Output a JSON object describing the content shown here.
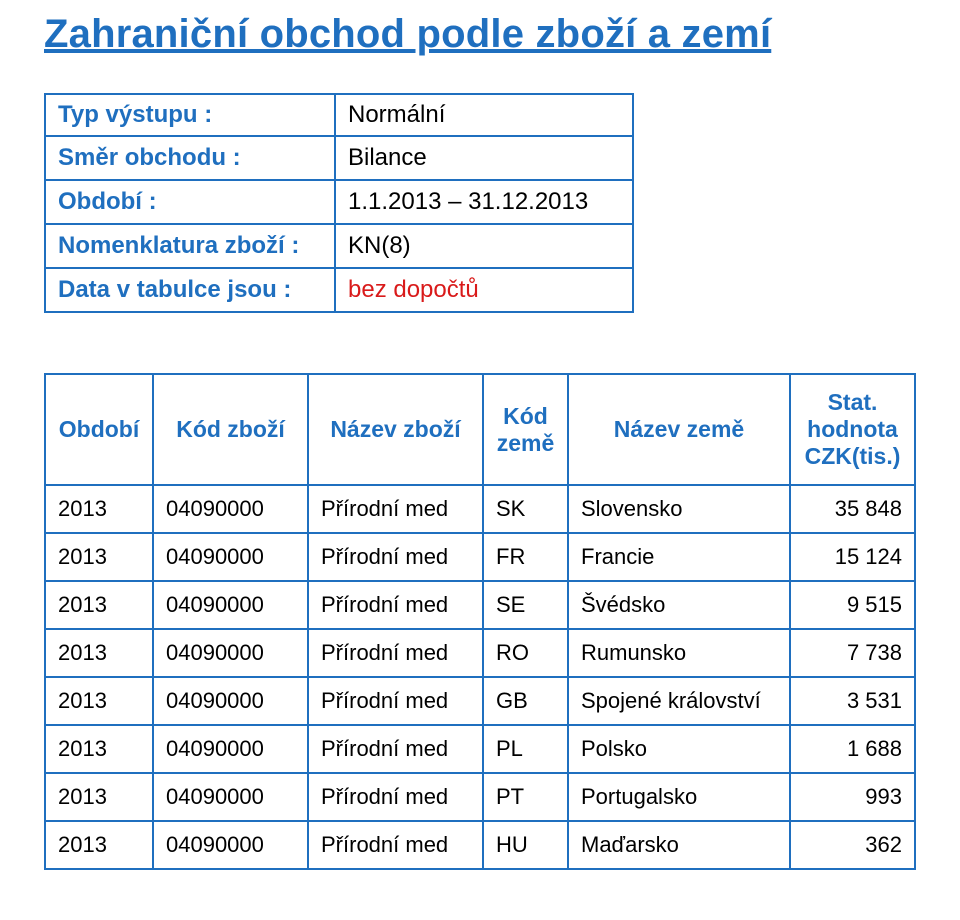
{
  "title": "Zahraniční obchod podle zboží a zemí",
  "title_color": "#1f6fbf",
  "border_color": "#1f6fbf",
  "value_red_color": "#d91a1a",
  "meta": [
    {
      "label": "Typ výstupu :",
      "value": "Normální",
      "style": "black"
    },
    {
      "label": "Směr obchodu :",
      "value": "Bilance",
      "style": "black"
    },
    {
      "label": "Období :",
      "value": "1.1.2013 – 31.12.2013",
      "style": "black"
    },
    {
      "label": "Nomenklatura zboží :",
      "value": "KN(8)",
      "style": "black"
    },
    {
      "label": "Data v tabulce jsou :",
      "value": "bez dopočtů",
      "style": "red"
    }
  ],
  "columns": [
    "Období",
    "Kód zboží",
    "Název zboží",
    "Kód země",
    "Název země",
    "Stat. hodnota CZK(tis.)"
  ],
  "rows": [
    {
      "period": "2013",
      "code": "04090000",
      "name": "Přírodní med",
      "ccode": "SK",
      "cname": "Slovensko",
      "stat": "35 848"
    },
    {
      "period": "2013",
      "code": "04090000",
      "name": "Přírodní med",
      "ccode": "FR",
      "cname": "Francie",
      "stat": "15 124"
    },
    {
      "period": "2013",
      "code": "04090000",
      "name": "Přírodní med",
      "ccode": "SE",
      "cname": "Švédsko",
      "stat": "9 515"
    },
    {
      "period": "2013",
      "code": "04090000",
      "name": "Přírodní med",
      "ccode": "RO",
      "cname": "Rumunsko",
      "stat": "7 738"
    },
    {
      "period": "2013",
      "code": "04090000",
      "name": "Přírodní med",
      "ccode": "GB",
      "cname": "Spojené království",
      "stat": "3 531"
    },
    {
      "period": "2013",
      "code": "04090000",
      "name": "Přírodní med",
      "ccode": "PL",
      "cname": "Polsko",
      "stat": "1 688"
    },
    {
      "period": "2013",
      "code": "04090000",
      "name": "Přírodní med",
      "ccode": "PT",
      "cname": "Portugalsko",
      "stat": "993"
    },
    {
      "period": "2013",
      "code": "04090000",
      "name": "Přírodní med",
      "ccode": "HU",
      "cname": "Maďarsko",
      "stat": "362"
    }
  ]
}
